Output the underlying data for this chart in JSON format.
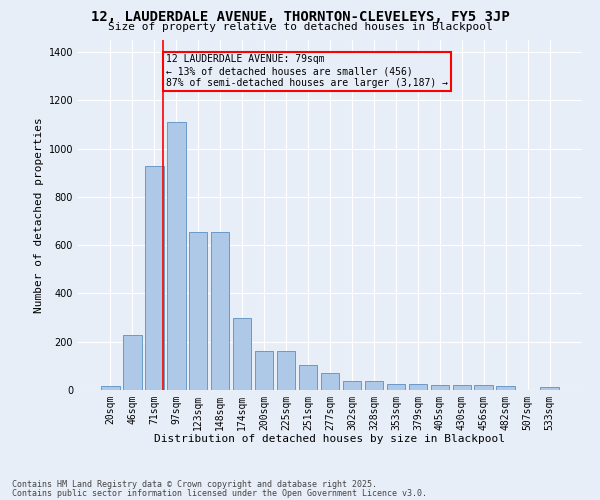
{
  "title1": "12, LAUDERDALE AVENUE, THORNTON-CLEVELEYS, FY5 3JP",
  "title2": "Size of property relative to detached houses in Blackpool",
  "xlabel": "Distribution of detached houses by size in Blackpool",
  "ylabel": "Number of detached properties",
  "footnote1": "Contains HM Land Registry data © Crown copyright and database right 2025.",
  "footnote2": "Contains public sector information licensed under the Open Government Licence v3.0.",
  "bar_labels": [
    "20sqm",
    "46sqm",
    "71sqm",
    "97sqm",
    "123sqm",
    "148sqm",
    "174sqm",
    "200sqm",
    "225sqm",
    "251sqm",
    "277sqm",
    "302sqm",
    "328sqm",
    "353sqm",
    "379sqm",
    "405sqm",
    "430sqm",
    "456sqm",
    "482sqm",
    "507sqm",
    "533sqm"
  ],
  "bar_values": [
    15,
    228,
    930,
    1110,
    655,
    655,
    300,
    160,
    160,
    105,
    70,
    38,
    38,
    25,
    25,
    20,
    20,
    20,
    15,
    0,
    12
  ],
  "bar_color": "#aec8e8",
  "bar_edge_color": "#5a8fc0",
  "annotation_text_line1": "12 LAUDERDALE AVENUE: 79sqm",
  "annotation_text_line2": "← 13% of detached houses are smaller (456)",
  "annotation_text_line3": "87% of semi-detached houses are larger (3,187) →",
  "annotation_box_color": "red",
  "vline_color": "red",
  "background_color": "#e8eef8",
  "ylim": [
    0,
    1450
  ],
  "grid_color": "#ffffff",
  "tick_label_fontsize": 7,
  "ylabel_fontsize": 8,
  "xlabel_fontsize": 8,
  "title1_fontsize": 10,
  "title2_fontsize": 8,
  "footnote_fontsize": 6
}
